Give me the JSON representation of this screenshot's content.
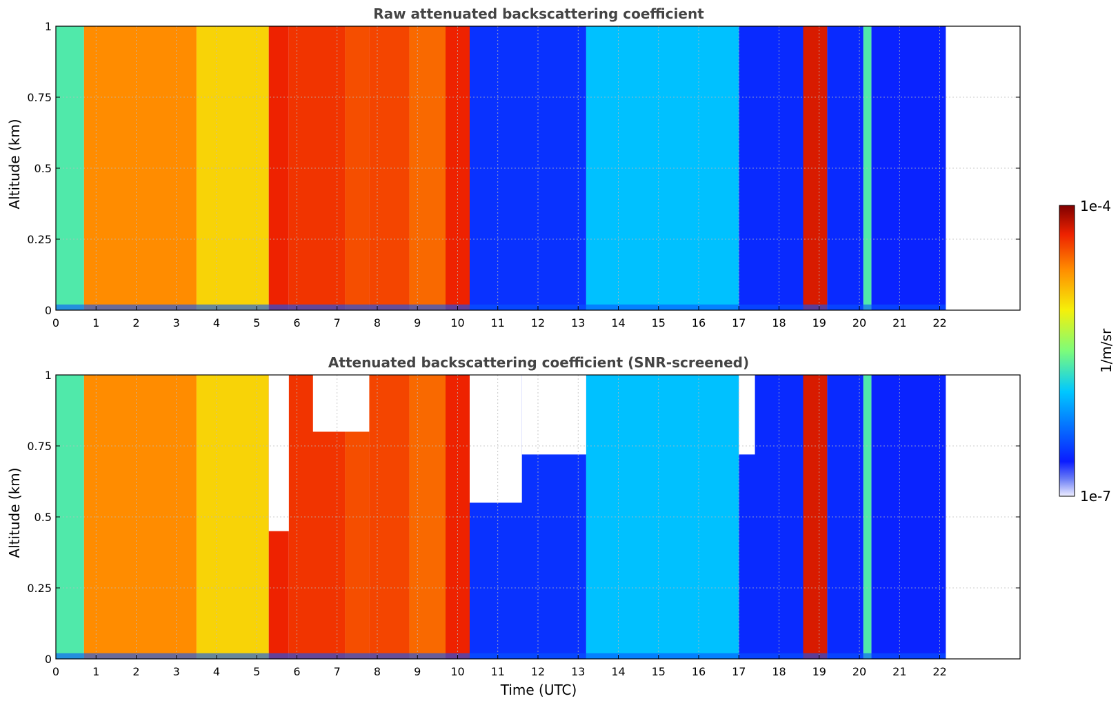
{
  "chart_data": [
    {
      "type": "heatmap",
      "title": "Raw attenuated backscattering coefficient",
      "xlabel": "",
      "ylabel": "Altitude (km)",
      "xlim": [
        0,
        24
      ],
      "ylim": [
        0,
        1
      ],
      "x_ticks": [
        "0",
        "1",
        "2",
        "3",
        "4",
        "5",
        "6",
        "7",
        "8",
        "9",
        "10",
        "11",
        "12",
        "13",
        "14",
        "15",
        "16",
        "17",
        "18",
        "19",
        "20",
        "21",
        "22"
      ],
      "y_ticks": [
        "0",
        "0.25",
        "0.5",
        "0.75",
        "1"
      ],
      "data_end_time": 22.15,
      "grid": true,
      "columns": [
        {
          "t0": 0.0,
          "t1": 0.7,
          "level": 0.45
        },
        {
          "t0": 0.7,
          "t1": 3.5,
          "level": 0.78
        },
        {
          "t0": 3.5,
          "t1": 5.3,
          "level": 0.68
        },
        {
          "t0": 5.3,
          "t1": 5.8,
          "level": 0.9
        },
        {
          "t0": 5.8,
          "t1": 7.2,
          "level": 0.88
        },
        {
          "t0": 7.2,
          "t1": 7.8,
          "level": 0.85
        },
        {
          "t0": 7.8,
          "t1": 8.8,
          "level": 0.86
        },
        {
          "t0": 8.8,
          "t1": 9.7,
          "level": 0.82
        },
        {
          "t0": 9.7,
          "t1": 10.3,
          "level": 0.9
        },
        {
          "t0": 10.3,
          "t1": 13.2,
          "level": 0.15
        },
        {
          "t0": 13.2,
          "t1": 17.0,
          "level": 0.35
        },
        {
          "t0": 17.0,
          "t1": 18.6,
          "level": 0.14
        },
        {
          "t0": 18.6,
          "t1": 19.2,
          "level": 0.92
        },
        {
          "t0": 19.2,
          "t1": 20.1,
          "level": 0.14
        },
        {
          "t0": 20.1,
          "t1": 20.3,
          "level": 0.45
        },
        {
          "t0": 20.3,
          "t1": 22.15,
          "level": 0.13
        }
      ]
    },
    {
      "type": "heatmap",
      "title": "Attenuated backscattering coefficient (SNR-screened)",
      "xlabel": "Time (UTC)",
      "ylabel": "Altitude (km)",
      "xlim": [
        0,
        24
      ],
      "ylim": [
        0,
        1
      ],
      "x_ticks": [
        "0",
        "1",
        "2",
        "3",
        "4",
        "5",
        "6",
        "7",
        "8",
        "9",
        "10",
        "11",
        "12",
        "13",
        "14",
        "15",
        "16",
        "17",
        "18",
        "19",
        "20",
        "21",
        "22"
      ],
      "y_ticks": [
        "0",
        "0.25",
        "0.5",
        "0.75",
        "1"
      ],
      "data_end_time": 22.15,
      "grid": true,
      "columns": [
        {
          "t0": 0.0,
          "t1": 0.7,
          "level": 0.45
        },
        {
          "t0": 0.7,
          "t1": 3.5,
          "level": 0.78
        },
        {
          "t0": 3.5,
          "t1": 5.3,
          "level": 0.68
        },
        {
          "t0": 5.3,
          "t1": 5.8,
          "level": 0.9
        },
        {
          "t0": 5.8,
          "t1": 7.2,
          "level": 0.88
        },
        {
          "t0": 7.2,
          "t1": 7.8,
          "level": 0.85
        },
        {
          "t0": 7.8,
          "t1": 8.8,
          "level": 0.86
        },
        {
          "t0": 8.8,
          "t1": 9.7,
          "level": 0.82
        },
        {
          "t0": 9.7,
          "t1": 10.3,
          "level": 0.9
        },
        {
          "t0": 10.3,
          "t1": 13.2,
          "level": 0.15
        },
        {
          "t0": 13.2,
          "t1": 17.0,
          "level": 0.35
        },
        {
          "t0": 17.0,
          "t1": 18.6,
          "level": 0.14
        },
        {
          "t0": 18.6,
          "t1": 19.2,
          "level": 0.92
        },
        {
          "t0": 19.2,
          "t1": 20.1,
          "level": 0.14
        },
        {
          "t0": 20.1,
          "t1": 20.3,
          "level": 0.45
        },
        {
          "t0": 20.3,
          "t1": 22.15,
          "level": 0.13
        }
      ],
      "screened_regions": [
        {
          "t0": 5.3,
          "t1": 5.8,
          "z0": 0.45,
          "z1": 1.0
        },
        {
          "t0": 6.4,
          "t1": 7.8,
          "z0": 0.8,
          "z1": 1.0
        },
        {
          "t0": 10.3,
          "t1": 11.6,
          "z0": 0.55,
          "z1": 1.0
        },
        {
          "t0": 11.6,
          "t1": 13.2,
          "z0": 0.72,
          "z1": 1.0
        },
        {
          "t0": 17.0,
          "t1": 17.4,
          "z0": 0.72,
          "z1": 1.0
        }
      ]
    }
  ],
  "colorbar": {
    "label": "1/m/sr",
    "max_label": "1e-4",
    "min_label": "1e-7",
    "scale": "log",
    "colormap": "jet",
    "min": 1e-07,
    "max": 0.0001
  },
  "colors": {
    "grid": "#bbbbbb",
    "title": "#444444",
    "screened": "#ffffff"
  }
}
